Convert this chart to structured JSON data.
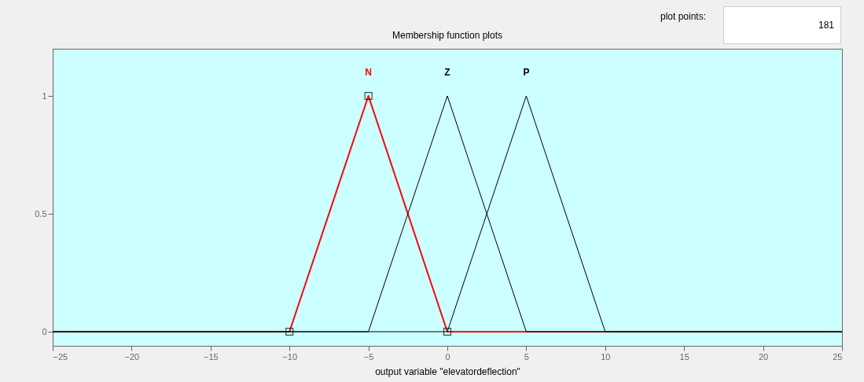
{
  "chart_data": {
    "type": "line",
    "title": "Membership function plots",
    "xlabel": "output variable \"elevatordeflection\"",
    "xlim": [
      -25,
      25
    ],
    "xticks": [
      -25,
      -20,
      -15,
      -10,
      -5,
      0,
      5,
      10,
      15,
      20,
      25
    ],
    "ylim": [
      -0.06,
      1.2
    ],
    "yticks": [
      0,
      0.5,
      1
    ],
    "grid": false,
    "legend": false,
    "annotations": [
      "plot points:",
      "181"
    ],
    "series": [
      {
        "name": "N",
        "color": "#ff0000",
        "x": [
          -25,
          -10,
          -5,
          0,
          25
        ],
        "values": [
          0,
          0,
          1,
          0,
          0
        ]
      },
      {
        "name": "Z",
        "color": "#000000",
        "x": [
          -25,
          -5,
          0,
          5,
          25
        ],
        "values": [
          0,
          0,
          1,
          0,
          0
        ]
      },
      {
        "name": "P",
        "color": "#000000",
        "x": [
          -25,
          0,
          5,
          10,
          25
        ],
        "values": [
          0,
          0,
          1,
          0,
          0
        ]
      },
      {
        "type": "scatter",
        "marker": "square",
        "color": "#000000",
        "x": [
          -10,
          -5,
          0
        ],
        "values": [
          0,
          1,
          0
        ]
      }
    ]
  }
}
